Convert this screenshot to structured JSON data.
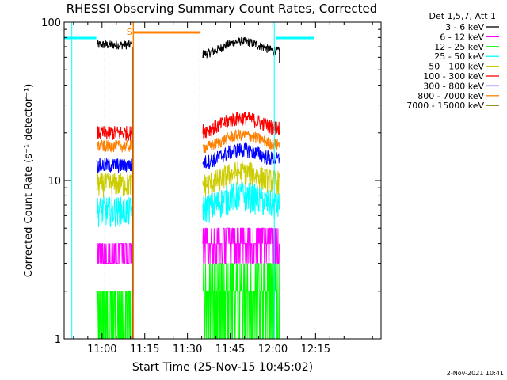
{
  "chart_data": {
    "type": "line",
    "title": "RHESSI Observing Summary Count Rates, Corrected",
    "xlabel": "Start Time (25-Nov-15 10:45:02)",
    "ylabel": "Corrected Count Rate (s⁻¹ detector⁻¹)",
    "y_scale": "log",
    "ylim": [
      1,
      100
    ],
    "xlim_minutes": [
      -13.3,
      98.0
    ],
    "x_ticks": [
      {
        "label": "11:00",
        "t": 0
      },
      {
        "label": "11:15",
        "t": 15
      },
      {
        "label": "11:30",
        "t": 30
      },
      {
        "label": "11:45",
        "t": 45
      },
      {
        "label": "12:00",
        "t": 60
      },
      {
        "label": "12:15",
        "t": 75
      }
    ],
    "y_ticks": [
      {
        "label": "1",
        "v": 1
      },
      {
        "label": "10",
        "v": 10
      },
      {
        "label": "100",
        "v": 100
      }
    ],
    "legend_title": "Det 1,5,7, Att 1",
    "legend_position": "right",
    "data_gaps": [
      [
        10.8,
        35.0
      ]
    ],
    "series": [
      {
        "name": "3 - 6 keV",
        "color": "#000000",
        "seg1": 72,
        "seg2": 70,
        "noise": 0.03
      },
      {
        "name": "6 - 12 keV",
        "color": "#ff00ff",
        "seg1": 3.6,
        "seg2": 4.2,
        "noise": 0.12
      },
      {
        "name": "12 - 25 keV",
        "color": "#00ff00",
        "seg1": 1.5,
        "seg2": 1.7,
        "noise": 0.2
      },
      {
        "name": "25 - 50 keV",
        "color": "#00ffff",
        "seg1": 6.5,
        "seg2": 7.5,
        "noise": 0.1
      },
      {
        "name": "50 - 100 keV",
        "color": "#cccc00",
        "seg1": 9.5,
        "seg2": 10.5,
        "noise": 0.08
      },
      {
        "name": "100 - 300 keV",
        "color": "#ff0000",
        "seg1": 20,
        "seg2": 23,
        "noise": 0.05
      },
      {
        "name": "300 - 800 keV",
        "color": "#0000ff",
        "seg1": 12.5,
        "seg2": 14.5,
        "noise": 0.05
      },
      {
        "name": "800 - 7000 keV",
        "color": "#ff8000",
        "seg1": 16.5,
        "seg2": 18,
        "noise": 0.04
      },
      {
        "name": "7000 - 15000 keV",
        "color": "#808000",
        "seg1": 0,
        "seg2": 0,
        "noise": 0
      }
    ],
    "flags": {
      "saa_label": "S",
      "saa_color": "#ff8000",
      "night_color": "#00ffff"
    },
    "timestamp": "2-Nov-2021 10:41"
  }
}
